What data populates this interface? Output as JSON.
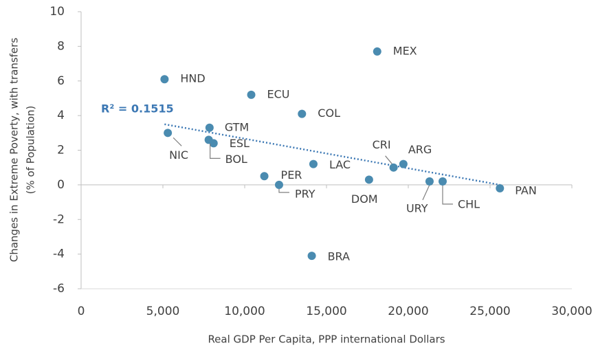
{
  "chart_data": {
    "type": "scatter",
    "xlabel": "Real GDP Per Capita, PPP international Dollars",
    "ylabel": [
      "Changes in Extreme Poverty, with transfers",
      "(% of Population)"
    ],
    "annotation": "R² = 0.1515",
    "color": "#4a8bb0",
    "trend_color": "#3c78b4",
    "xlim": [
      0,
      30000
    ],
    "ylim": [
      -6,
      10
    ],
    "xticks": [
      0,
      {
        "value": 5000,
        "label": "5,000"
      },
      {
        "value": 10000,
        "label": "10,000"
      },
      {
        "value": 15000,
        "label": "15,000"
      },
      {
        "value": 20000,
        "label": "20,000"
      },
      {
        "value": 25000,
        "label": "25,000"
      },
      {
        "value": 30000,
        "label": "30,000"
      }
    ],
    "yticks": [
      -6,
      -4,
      -2,
      0,
      2,
      4,
      6,
      8,
      10
    ],
    "labels": [
      "HND",
      "MEX",
      "ECU",
      "COL",
      "GTM",
      "NIC",
      "ESL",
      "BOL",
      "PER",
      "PRY",
      "LAC",
      "BRA",
      "DOM",
      "CRI",
      "ARG",
      "URY",
      "CHL",
      "PAN"
    ],
    "x": [
      5100,
      18100,
      10400,
      13500,
      7850,
      5300,
      8100,
      7800,
      11200,
      12100,
      14200,
      14100,
      17600,
      19100,
      19700,
      21300,
      22100,
      25600
    ],
    "y": [
      6.1,
      7.7,
      5.2,
      4.1,
      3.3,
      3.0,
      2.4,
      2.6,
      0.5,
      0.0,
      1.2,
      -4.1,
      0.3,
      1.0,
      1.2,
      0.2,
      0.2,
      -0.2
    ],
    "trendline": {
      "x": [
        5100,
        25600
      ],
      "y": [
        3.5,
        0
      ]
    }
  }
}
